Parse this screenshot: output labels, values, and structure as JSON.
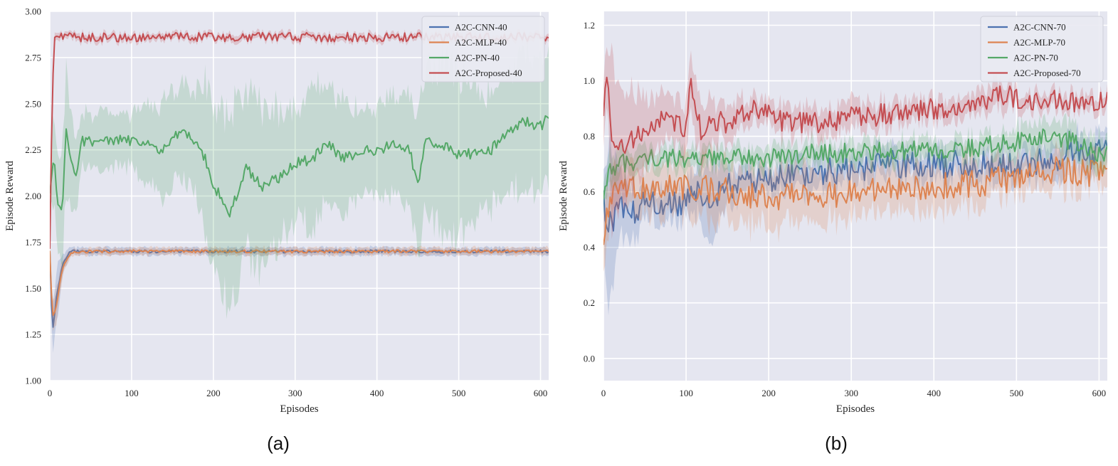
{
  "charts": [
    {
      "panel_label": "(a)",
      "chart_data": {
        "type": "line",
        "xlabel": "Episodes",
        "ylabel": "Episode Reward",
        "xlim": [
          0,
          610
        ],
        "ylim": [
          1.0,
          3.0
        ],
        "xticks": [
          "0",
          "100",
          "200",
          "300",
          "400",
          "500",
          "600"
        ],
        "yticks": [
          "1.00",
          "1.25",
          "1.50",
          "1.75",
          "2.00",
          "2.25",
          "2.50",
          "2.75",
          "3.00"
        ],
        "grid": true,
        "legend": "top-right",
        "series": [
          {
            "name": "A2C-CNN-40",
            "color": "#4c72b0",
            "x": [
              0,
              3,
              8,
              15,
              25,
              50,
              100,
              200,
              300,
              400,
              500,
              610
            ],
            "y": [
              1.7,
              1.25,
              1.45,
              1.62,
              1.7,
              1.7,
              1.7,
              1.7,
              1.7,
              1.7,
              1.7,
              1.7
            ],
            "band": [
              0.03,
              0.12,
              0.15,
              0.05,
              0.02,
              0.02,
              0.02,
              0.02,
              0.02,
              0.02,
              0.02,
              0.02
            ],
            "noise": 0.008
          },
          {
            "name": "A2C-MLP-40",
            "color": "#dd8452",
            "x": [
              0,
              3,
              8,
              15,
              25,
              50,
              100,
              200,
              300,
              400,
              500,
              610
            ],
            "y": [
              1.7,
              1.35,
              1.4,
              1.6,
              1.69,
              1.7,
              1.7,
              1.7,
              1.7,
              1.7,
              1.7,
              1.7
            ],
            "band": [
              0.03,
              0.1,
              0.1,
              0.05,
              0.02,
              0.02,
              0.02,
              0.02,
              0.02,
              0.02,
              0.02,
              0.02
            ],
            "noise": 0.008
          },
          {
            "name": "A2C-PN-40",
            "color": "#55a868",
            "x": [
              0,
              5,
              10,
              15,
              20,
              25,
              30,
              40,
              60,
              100,
              140,
              160,
              180,
              190,
              200,
              210,
              220,
              240,
              260,
              280,
              300,
              320,
              340,
              360,
              380,
              400,
              420,
              440,
              450,
              460,
              480,
              500,
              540,
              560,
              580,
              600,
              610
            ],
            "y": [
              2.0,
              2.2,
              1.95,
              1.9,
              2.35,
              2.2,
              2.1,
              2.3,
              2.3,
              2.3,
              2.25,
              2.35,
              2.3,
              2.2,
              2.05,
              2.0,
              1.9,
              2.15,
              2.05,
              2.1,
              2.18,
              2.2,
              2.28,
              2.2,
              2.25,
              2.25,
              2.28,
              2.25,
              2.05,
              2.3,
              2.28,
              2.22,
              2.25,
              2.35,
              2.4,
              2.38,
              2.42
            ],
            "band": [
              0.1,
              0.25,
              0.25,
              0.3,
              0.35,
              0.25,
              0.2,
              0.15,
              0.15,
              0.15,
              0.25,
              0.25,
              0.3,
              0.4,
              0.45,
              0.45,
              0.5,
              0.45,
              0.45,
              0.35,
              0.3,
              0.35,
              0.35,
              0.3,
              0.25,
              0.25,
              0.3,
              0.3,
              0.35,
              0.4,
              0.45,
              0.45,
              0.3,
              0.3,
              0.35,
              0.35,
              0.35
            ],
            "noise": 0.03
          },
          {
            "name": "A2C-Proposed-40",
            "color": "#c44e52",
            "x": [
              0,
              2,
              5,
              8,
              20,
              100,
              200,
              300,
              400,
              500,
              600,
              610
            ],
            "y": [
              1.7,
              2.3,
              2.85,
              2.86,
              2.86,
              2.86,
              2.86,
              2.86,
              2.86,
              2.86,
              2.86,
              2.85
            ],
            "band": [
              0.05,
              0.1,
              0.03,
              0.02,
              0.02,
              0.02,
              0.02,
              0.02,
              0.02,
              0.02,
              0.02,
              0.02
            ],
            "noise": 0.025
          }
        ]
      }
    },
    {
      "panel_label": "(b)",
      "chart_data": {
        "type": "line",
        "xlabel": "Episodes",
        "ylabel": "Episode Reward",
        "xlim": [
          0,
          610
        ],
        "ylim": [
          -0.08,
          1.25
        ],
        "xticks": [
          "0",
          "100",
          "200",
          "300",
          "400",
          "500",
          "600"
        ],
        "yticks": [
          "0.0",
          "0.2",
          "0.4",
          "0.6",
          "0.8",
          "1.0",
          "1.2"
        ],
        "grid": true,
        "legend": "top-right",
        "series": [
          {
            "name": "A2C-CNN-70",
            "color": "#4c72b0",
            "x": [
              0,
              3,
              5,
              8,
              12,
              20,
              30,
              50,
              80,
              100,
              120,
              130,
              150,
              200,
              250,
              300,
              350,
              400,
              450,
              500,
              550,
              570,
              590,
              600
            ],
            "y": [
              0.65,
              0.4,
              0.45,
              0.55,
              0.5,
              0.55,
              0.52,
              0.56,
              0.55,
              0.57,
              0.6,
              0.58,
              0.62,
              0.64,
              0.67,
              0.68,
              0.7,
              0.7,
              0.7,
              0.7,
              0.72,
              0.75,
              0.72,
              0.75
            ],
            "band": [
              0.1,
              0.25,
              0.3,
              0.25,
              0.2,
              0.12,
              0.1,
              0.06,
              0.06,
              0.06,
              0.1,
              0.15,
              0.06,
              0.05,
              0.06,
              0.05,
              0.05,
              0.05,
              0.05,
              0.05,
              0.06,
              0.06,
              0.06,
              0.06
            ],
            "noise": 0.05
          },
          {
            "name": "A2C-MLP-70",
            "color": "#dd8452",
            "x": [
              0,
              5,
              10,
              20,
              50,
              100,
              150,
              200,
              250,
              300,
              350,
              400,
              450,
              500,
              550,
              600
            ],
            "y": [
              0.45,
              0.55,
              0.58,
              0.6,
              0.62,
              0.62,
              0.6,
              0.58,
              0.58,
              0.6,
              0.62,
              0.62,
              0.63,
              0.65,
              0.68,
              0.66
            ],
            "band": [
              0.1,
              0.1,
              0.08,
              0.07,
              0.08,
              0.1,
              0.12,
              0.1,
              0.1,
              0.08,
              0.08,
              0.08,
              0.08,
              0.06,
              0.06,
              0.06
            ],
            "noise": 0.05
          },
          {
            "name": "A2C-PN-70",
            "color": "#55a868",
            "x": [
              0,
              5,
              10,
              20,
              50,
              100,
              150,
              200,
              250,
              300,
              350,
              400,
              450,
              500,
              550,
              600
            ],
            "y": [
              0.6,
              0.65,
              0.68,
              0.7,
              0.72,
              0.72,
              0.72,
              0.72,
              0.74,
              0.74,
              0.75,
              0.75,
              0.76,
              0.78,
              0.8,
              0.74
            ],
            "band": [
              0.05,
              0.06,
              0.06,
              0.05,
              0.04,
              0.04,
              0.04,
              0.04,
              0.04,
              0.04,
              0.04,
              0.04,
              0.04,
              0.05,
              0.06,
              0.06
            ],
            "noise": 0.035
          },
          {
            "name": "A2C-Proposed-70",
            "color": "#c44e52",
            "x": [
              0,
              5,
              10,
              20,
              40,
              60,
              80,
              100,
              105,
              110,
              120,
              130,
              150,
              180,
              200,
              220,
              260,
              300,
              350,
              400,
              450,
              480,
              500,
              550,
              600
            ],
            "y": [
              0.9,
              1.0,
              0.8,
              0.75,
              0.8,
              0.85,
              0.85,
              0.82,
              1.0,
              0.9,
              0.8,
              0.85,
              0.85,
              0.9,
              0.88,
              0.85,
              0.85,
              0.87,
              0.88,
              0.9,
              0.9,
              0.96,
              0.93,
              0.93,
              0.92
            ],
            "band": [
              0.1,
              0.1,
              0.3,
              0.25,
              0.15,
              0.1,
              0.08,
              0.08,
              0.1,
              0.12,
              0.1,
              0.08,
              0.06,
              0.05,
              0.05,
              0.05,
              0.05,
              0.05,
              0.04,
              0.04,
              0.04,
              0.05,
              0.03,
              0.03,
              0.03
            ],
            "noise": 0.04
          }
        ]
      }
    }
  ]
}
